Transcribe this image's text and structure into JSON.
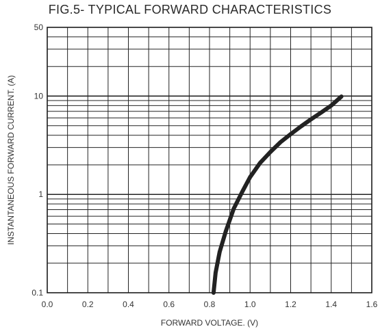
{
  "chart_data": {
    "type": "line",
    "title": "FIG.5- TYPICAL  FORWARD CHARACTERISTICS",
    "xlabel": "FORWARD VOLTAGE. (V)",
    "ylabel": "INSTANTANEOUS FORWARD CURRENT. (A)",
    "xlim": [
      0.0,
      1.6
    ],
    "ylim": [
      0.1,
      50
    ],
    "yscale": "log",
    "grid": true,
    "x_ticks": [
      "0.0",
      "0.2",
      "0.4",
      "0.6",
      "0.8",
      "1.0",
      "1.2",
      "1.4",
      "1.6"
    ],
    "y_ticks": [
      {
        "value": 0.1,
        "label": "0.1"
      },
      {
        "value": 1,
        "label": "1"
      },
      {
        "value": 10,
        "label": "10"
      },
      {
        "value": 50,
        "label": "50"
      }
    ],
    "series": [
      {
        "color": "#222222",
        "x": [
          0.82,
          0.83,
          0.85,
          0.88,
          0.92,
          0.96,
          1.0,
          1.05,
          1.1,
          1.15,
          1.2,
          1.25,
          1.3,
          1.35,
          1.4,
          1.45
        ],
        "y": [
          0.1,
          0.16,
          0.26,
          0.42,
          0.72,
          1.05,
          1.5,
          2.1,
          2.7,
          3.4,
          4.1,
          4.9,
          5.8,
          6.8,
          8.0,
          9.9
        ]
      }
    ]
  }
}
